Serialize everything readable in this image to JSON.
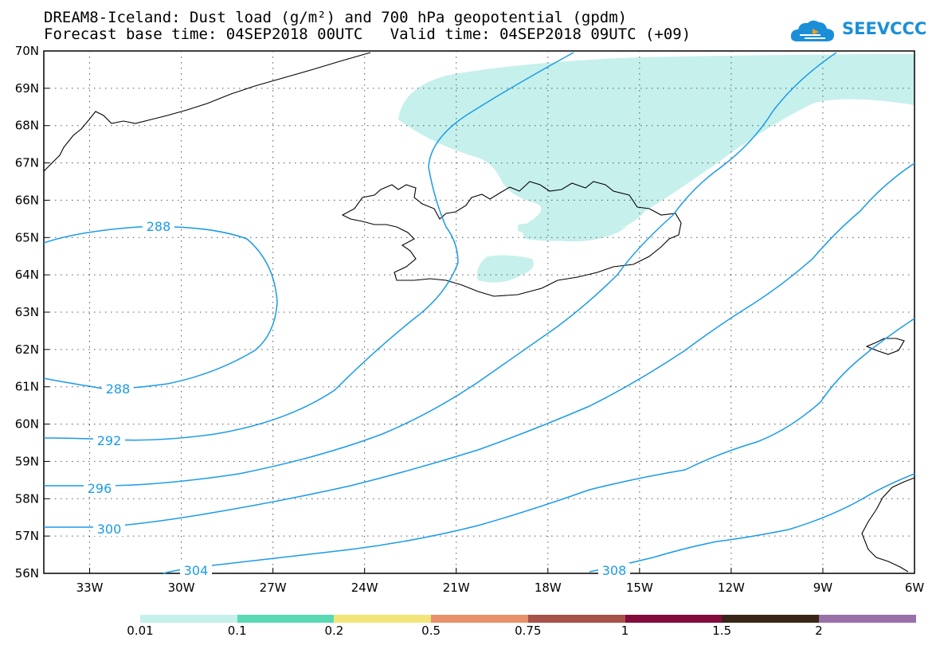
{
  "header": {
    "title_line1": "DREAM8-Iceland: Dust load (g/m²) and 700 hPa geopotential (gpdm)",
    "title_line2": "Forecast base time: 04SEP2018 00UTC   Valid time: 04SEP2018 09UTC (+09)"
  },
  "logo": {
    "text": "SEEVCCC",
    "color": "#1a8fd8"
  },
  "map": {
    "lon_range": [
      -34.5,
      -6
    ],
    "lat_range": [
      56,
      70
    ],
    "lat_labels": [
      "70N",
      "69N",
      "68N",
      "67N",
      "66N",
      "65N",
      "64N",
      "63N",
      "62N",
      "61N",
      "60N",
      "59N",
      "58N",
      "57N",
      "56N"
    ],
    "lon_labels": [
      "33W",
      "30W",
      "27W",
      "24W",
      "21W",
      "18W",
      "15W",
      "12W",
      "9W",
      "6W"
    ],
    "contour_color": "#1a9be8",
    "dust_color": "#c6f0ec",
    "contour_labels": [
      "288",
      "288",
      "292",
      "296",
      "300",
      "304",
      "308"
    ]
  },
  "colorbar": {
    "labels": [
      "0.01",
      "0.1",
      "0.2",
      "0.5",
      "0.75",
      "1",
      "1.5",
      "2"
    ],
    "colors": [
      "#c6f0ec",
      "#5ad9b2",
      "#f2e57a",
      "#e8906a",
      "#a8504a",
      "#820c3a",
      "#3a2618",
      "#9970a8"
    ]
  }
}
